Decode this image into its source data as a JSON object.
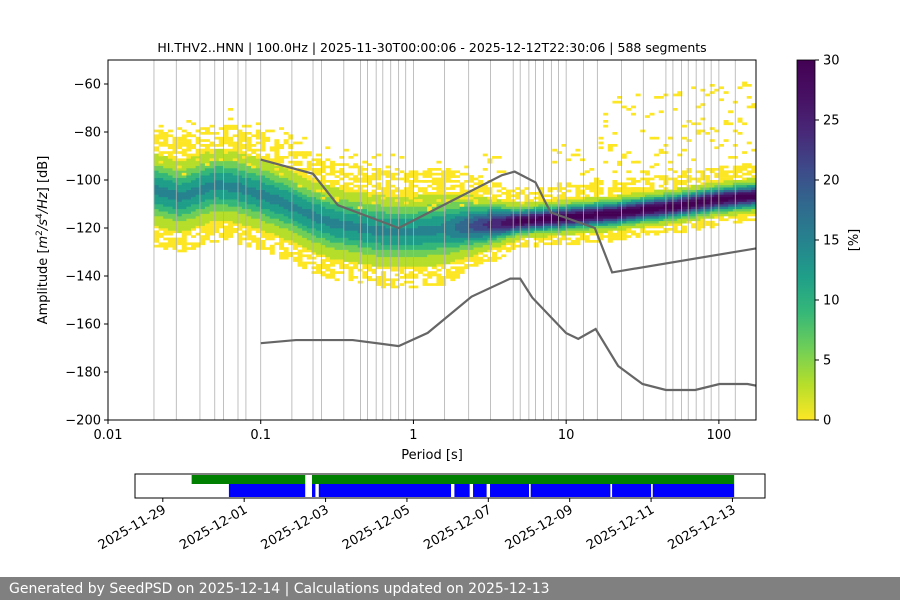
{
  "chart_data": {
    "type": "heatmap",
    "title": "HI.THV2..HNN | 100.0Hz | 2025-11-30T00:00:06 - 2025-12-12T22:30:06 | 588 segments",
    "xlabel": "Period [s]",
    "ylabel": "Amplitude [m²/s⁴/Hz] [dB]",
    "ylabel_parts": {
      "pre": "Amplitude [",
      "m": "m",
      "sup2": "2",
      "slash_s": "/s",
      "sup4": "4",
      "hz": "/Hz",
      "post": "] [dB]"
    },
    "x_scale": "log",
    "xlim": [
      0.01,
      175
    ],
    "ylim": [
      -200,
      -50
    ],
    "x_ticks": [
      0.01,
      0.1,
      1,
      10,
      100
    ],
    "x_tick_labels": [
      "0.01",
      "0.1",
      "1",
      "10",
      "100"
    ],
    "y_ticks": [
      -200,
      -180,
      -160,
      -140,
      -120,
      -100,
      -80,
      -60
    ],
    "y_tick_labels": [
      "−200",
      "−180",
      "−160",
      "−140",
      "−120",
      "−100",
      "−80",
      "−60"
    ],
    "grid": "vertical lines at octave period bins",
    "grid_periods": [
      0.02,
      0.028,
      0.04,
      0.05,
      0.057,
      0.071,
      0.08,
      0.1,
      0.16,
      0.22,
      0.25,
      0.35,
      0.45,
      0.5,
      0.57,
      0.63,
      0.71,
      0.8,
      0.89,
      1.0,
      1.6,
      2.3,
      3.2,
      4.5,
      5.0,
      5.7,
      6.3,
      7.1,
      8.0,
      8.9,
      10,
      13,
      16,
      23,
      32,
      45,
      50,
      57,
      63,
      71,
      80,
      89,
      100,
      128
    ],
    "noise_models": [
      {
        "name": "high-noise-model",
        "x": [
          0.1,
          0.22,
          0.32,
          0.8,
          3.8,
          4.6,
          6.3,
          7.9,
          15.4,
          20,
          175
        ],
        "y": [
          -91.5,
          -97.4,
          -110.5,
          -120,
          -98,
          -96.5,
          -101,
          -113.5,
          -120,
          -138.5,
          -128.5
        ]
      },
      {
        "name": "low-noise-model",
        "x": [
          0.1,
          0.17,
          0.4,
          0.8,
          1.24,
          2.4,
          4.3,
          5,
          6,
          10,
          12,
          15.6,
          21.9,
          31.6,
          45,
          70,
          101,
          154,
          175
        ],
        "y": [
          -168,
          -166.7,
          -166.7,
          -169.2,
          -163.7,
          -148.6,
          -141.1,
          -141.1,
          -149,
          -163.8,
          -166.2,
          -162.1,
          -177.5,
          -185,
          -187.5,
          -187.5,
          -185,
          -185,
          -185.7
        ]
      }
    ],
    "mode_curve": {
      "x": [
        0.02,
        0.03,
        0.05,
        0.07,
        0.1,
        0.15,
        0.2,
        0.3,
        0.5,
        0.7,
        1.0,
        1.5,
        2,
        3,
        5,
        8,
        10,
        15,
        20,
        30,
        50,
        100,
        175
      ],
      "y": [
        -104,
        -107,
        -102,
        -103,
        -106,
        -110,
        -114,
        -118,
        -120.5,
        -121.5,
        -121.5,
        -120.5,
        -119.5,
        -118.5,
        -117,
        -116,
        -115.5,
        -114.5,
        -114,
        -112.5,
        -111,
        -108,
        -106.5
      ]
    },
    "colorbar": {
      "label": "[%]",
      "ticks": [
        0,
        5,
        10,
        15,
        20,
        25,
        30
      ],
      "tick_labels": [
        "0",
        "5",
        "10",
        "15",
        "20",
        "25",
        "30"
      ],
      "range": [
        0,
        30
      ],
      "colormap": "viridis_r"
    },
    "colors": {
      "noise_model": "#666666",
      "availability": "#008000",
      "gap_free": "#0000ff",
      "footer_bg": "#808080",
      "grid": "#b0b0b0"
    }
  },
  "timeline": {
    "x_tick_labels": [
      "2025-11-29",
      "2025-12-01",
      "2025-12-03",
      "2025-12-05",
      "2025-12-07",
      "2025-12-09",
      "2025-12-11",
      "2025-12-13"
    ],
    "x_ticks": [
      "2025-11-29",
      "2025-12-01",
      "2025-12-03",
      "2025-12-05",
      "2025-12-07",
      "2025-12-09",
      "2025-12-11",
      "2025-12-13"
    ],
    "xlim": [
      "2025-11-28T07:36",
      "2025-12-13T19:12"
    ],
    "green_bars": [
      [
        "2025-11-29T17:00",
        "2025-12-02T12:00"
      ],
      [
        "2025-12-02T16:00",
        "2025-12-13T01:00"
      ]
    ],
    "blue_bars": [
      [
        "2025-11-30T15:00",
        "2025-12-02T12:00"
      ],
      [
        "2025-12-02T16:00",
        "2025-12-02T18:00"
      ],
      [
        "2025-12-02T20:00",
        "2025-12-06T02:00"
      ],
      [
        "2025-12-06T04:00",
        "2025-12-06T13:00"
      ],
      [
        "2025-12-06T15:00",
        "2025-12-06T23:00"
      ],
      [
        "2025-12-07T01:00",
        "2025-12-08T00:00"
      ],
      [
        "2025-12-08T01:00",
        "2025-12-10T00:00"
      ],
      [
        "2025-12-10T01:00",
        "2025-12-11T00:00"
      ],
      [
        "2025-12-11T01:00",
        "2025-12-13T01:00"
      ]
    ]
  },
  "footer": {
    "text": "Generated by SeedPSD on 2025-12-14 | Calculations updated on 2025-12-13"
  }
}
